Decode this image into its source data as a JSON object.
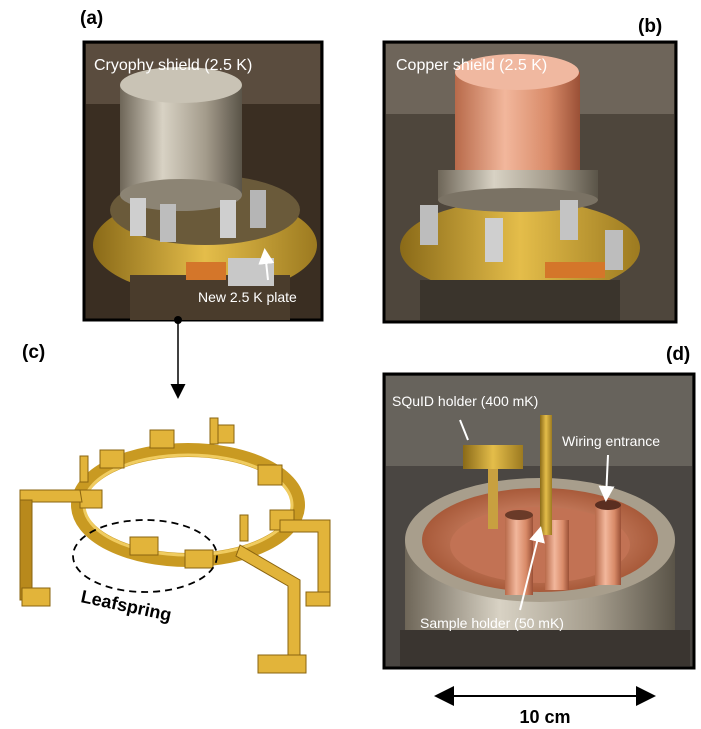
{
  "panels": [
    {
      "label": "(a)",
      "caption": "Cryophy shield (2.5 K)",
      "callout": "New 2.5 K plate"
    },
    {
      "label": "(b)",
      "caption": "Copper shield (2.5 K)"
    },
    {
      "label": "(c)",
      "callout": "Leafspring"
    },
    {
      "label": "(d)",
      "callouts": [
        "SQuID holder (400 mK)",
        "Wiring entrance",
        "Sample holder (50 mK)"
      ]
    }
  ],
  "scale_bar": "10 cm"
}
